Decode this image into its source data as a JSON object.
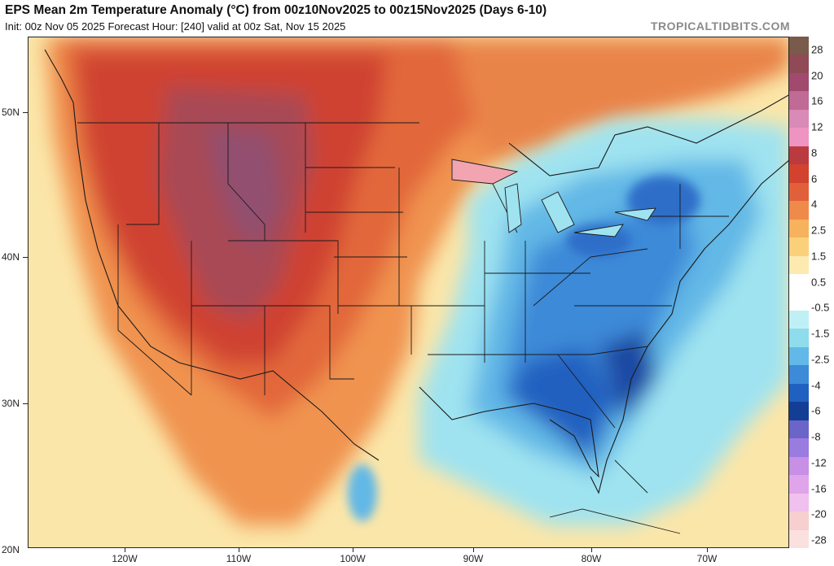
{
  "header": {
    "title": "EPS Mean 2m Temperature Anomaly (°C) from 00z10Nov2025 to 00z15Nov2025 (Days 6-10)",
    "subtitle": "Init: 00z Nov 05 2025   Forecast Hour: [240]   valid at 00z Sat, Nov 15 2025",
    "brand": "TROPICALTIDBITS.COM"
  },
  "map": {
    "lat_labels": [
      "50N",
      "40N",
      "30N",
      "20N"
    ],
    "lon_labels": [
      "120W",
      "110W",
      "100W",
      "90W",
      "80W",
      "70W"
    ],
    "colors": {
      "background_warm": "#fbe6a9",
      "strong_warm": "#c83a2e",
      "extreme_warm": "#8f3c5a",
      "cool": "#9fe3f0",
      "cold": "#3d7fd6",
      "very_cold": "#1d4aa3"
    }
  },
  "colorbar": {
    "labels": [
      "28",
      "20",
      "16",
      "12",
      "8",
      "6",
      "4",
      "2.5",
      "1.5",
      "0.5",
      "-0.5",
      "-1.5",
      "-2.5",
      "-4",
      "-6",
      "-8",
      "-12",
      "-16",
      "-20",
      "-28"
    ],
    "colors": [
      "#7a5a4a",
      "#8f4a55",
      "#a14a6e",
      "#c06a96",
      "#d98ab6",
      "#ee93c2",
      "#bb3a40",
      "#d2422f",
      "#e1603a",
      "#ef8a4a",
      "#f6b25d",
      "#fbd07a",
      "#fdeab0",
      "#ffffff",
      "#ffffff",
      "#bff0f5",
      "#8fdcec",
      "#62b8e6",
      "#3c8ad8",
      "#2060c0",
      "#123f95",
      "#6b64c9",
      "#9a7be0",
      "#c78fe6",
      "#e0a4ea",
      "#f0c0ee",
      "#f7cfcf",
      "#fbe0e0"
    ]
  }
}
